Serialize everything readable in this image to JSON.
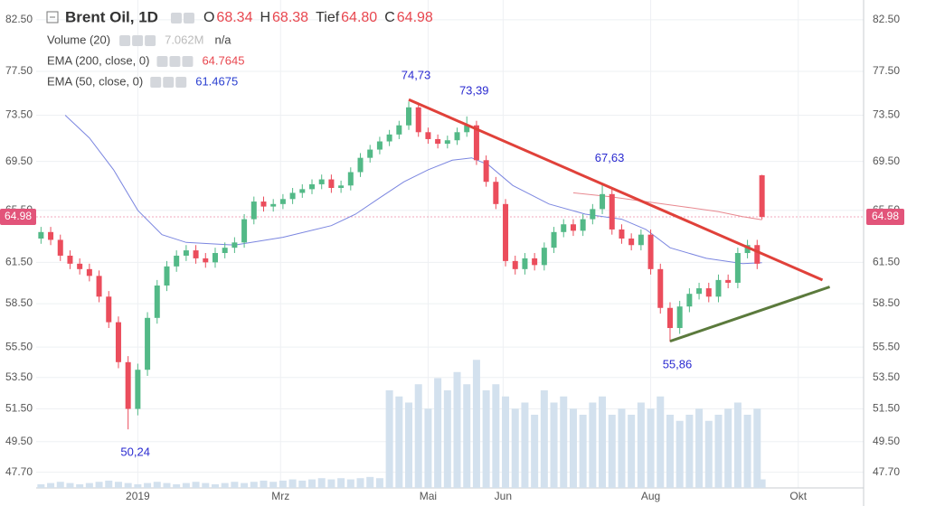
{
  "chart_data": {
    "type": "candlestick",
    "title": "Brent Oil, 1D",
    "log_scale": true,
    "grid": true,
    "up_color": "#53b987",
    "down_color": "#eb4d5c",
    "x": [
      -40,
      -36,
      -32,
      -28,
      -24,
      -20,
      -16,
      -12,
      -8,
      -4,
      0,
      4,
      8,
      12,
      16,
      20,
      24,
      28,
      32,
      36,
      40,
      44,
      48,
      52,
      56,
      60,
      64,
      68,
      72,
      76,
      80,
      84,
      88,
      92,
      96,
      100,
      104,
      108,
      112,
      116,
      120,
      124,
      128,
      132,
      136,
      140,
      144,
      148,
      152,
      156,
      160,
      164,
      168,
      172,
      176,
      180,
      184,
      188,
      192,
      196,
      200,
      204,
      208,
      212,
      216,
      220,
      224,
      228,
      232,
      236,
      240,
      244,
      248,
      252,
      256,
      258
    ],
    "open": [
      63.3,
      63.8,
      63.2,
      62.0,
      61.4,
      61.0,
      60.5,
      59.0,
      57.2,
      54.5,
      51.5,
      54.0,
      57.5,
      59.8,
      61.2,
      62.0,
      62.4,
      61.8,
      61.5,
      62.2,
      62.6,
      63.0,
      64.8,
      66.2,
      65.8,
      66.0,
      66.4,
      66.9,
      67.2,
      67.6,
      68.0,
      67.3,
      67.5,
      68.6,
      69.8,
      70.5,
      71.2,
      71.8,
      72.6,
      74.2,
      72.0,
      71.4,
      71.0,
      71.3,
      72.0,
      72.6,
      69.6,
      67.8,
      66.0,
      61.6,
      61.0,
      61.8,
      61.3,
      62.6,
      63.8,
      64.4,
      63.9,
      64.8,
      65.6,
      66.8,
      64.0,
      63.3,
      62.8,
      63.6,
      61.0,
      58.2,
      56.8,
      58.3,
      59.2,
      59.6,
      59.0,
      60.2,
      60.0,
      62.2,
      62.8,
      68.34
    ],
    "high": [
      64.2,
      64.2,
      63.6,
      62.4,
      61.8,
      61.4,
      60.9,
      59.4,
      57.6,
      54.9,
      54.4,
      57.9,
      60.2,
      61.6,
      62.4,
      62.8,
      62.8,
      62.2,
      62.6,
      63.0,
      63.4,
      65.2,
      66.6,
      66.6,
      66.4,
      66.8,
      67.3,
      67.6,
      68.0,
      68.4,
      68.4,
      67.9,
      69.0,
      70.2,
      70.9,
      71.6,
      72.2,
      73.0,
      74.73,
      74.6,
      72.4,
      71.8,
      71.7,
      72.4,
      73.39,
      73.0,
      70.0,
      68.2,
      66.4,
      62.0,
      62.2,
      62.2,
      63.0,
      64.2,
      64.8,
      64.8,
      65.2,
      66.0,
      67.63,
      67.2,
      64.4,
      63.7,
      64.0,
      64.0,
      61.4,
      58.6,
      58.7,
      59.6,
      60.0,
      60.0,
      60.6,
      60.6,
      62.6,
      63.2,
      63.2,
      68.38
    ],
    "low": [
      62.9,
      62.8,
      61.6,
      61.0,
      60.6,
      60.1,
      58.6,
      56.8,
      54.1,
      50.24,
      51.1,
      53.6,
      57.1,
      59.4,
      60.8,
      61.6,
      61.4,
      61.1,
      61.1,
      61.8,
      62.2,
      62.6,
      64.4,
      65.4,
      65.4,
      65.6,
      66.0,
      66.5,
      66.8,
      67.2,
      66.9,
      66.9,
      67.1,
      68.2,
      69.4,
      70.1,
      70.8,
      71.4,
      72.2,
      71.6,
      71.0,
      70.6,
      70.6,
      70.9,
      71.6,
      69.2,
      67.4,
      65.6,
      61.2,
      60.6,
      60.6,
      60.9,
      60.9,
      62.2,
      63.4,
      63.5,
      63.5,
      64.4,
      65.2,
      63.6,
      62.9,
      62.4,
      62.4,
      60.6,
      57.8,
      55.86,
      56.4,
      57.9,
      58.8,
      58.6,
      58.6,
      59.6,
      59.6,
      61.8,
      61.0,
      64.8
    ],
    "close": [
      63.8,
      63.2,
      62.0,
      61.4,
      61.0,
      60.5,
      59.0,
      57.2,
      54.5,
      51.5,
      54.0,
      57.5,
      59.8,
      61.2,
      62.0,
      62.4,
      61.8,
      61.5,
      62.2,
      62.6,
      63.0,
      64.8,
      66.2,
      65.8,
      66.0,
      66.4,
      66.9,
      67.2,
      67.6,
      68.0,
      67.3,
      67.5,
      68.6,
      69.8,
      70.5,
      71.2,
      71.8,
      72.6,
      74.2,
      72.0,
      71.4,
      71.0,
      71.3,
      72.0,
      72.6,
      69.6,
      67.8,
      66.0,
      61.6,
      61.0,
      61.8,
      61.3,
      62.6,
      63.8,
      64.4,
      63.9,
      64.8,
      65.6,
      66.8,
      64.0,
      63.3,
      62.8,
      63.6,
      61.0,
      58.2,
      56.8,
      58.3,
      59.2,
      59.6,
      59.0,
      60.2,
      60.0,
      62.2,
      62.8,
      61.4,
      64.98
    ],
    "volume": [
      0.3,
      0.4,
      0.5,
      0.4,
      0.3,
      0.4,
      0.5,
      0.6,
      0.5,
      0.4,
      0.3,
      0.4,
      0.5,
      0.4,
      0.3,
      0.4,
      0.5,
      0.4,
      0.3,
      0.4,
      0.5,
      0.4,
      0.5,
      0.6,
      0.5,
      0.6,
      0.7,
      0.6,
      0.7,
      0.8,
      0.7,
      0.8,
      0.7,
      0.8,
      0.9,
      0.8,
      8.0,
      7.5,
      7.0,
      8.5,
      6.5,
      9.0,
      8.0,
      9.5,
      8.5,
      10.5,
      8.0,
      8.5,
      7.5,
      6.5,
      7.0,
      6.0,
      8.0,
      7.0,
      7.5,
      6.5,
      6.0,
      7.0,
      7.5,
      6.0,
      6.5,
      6.0,
      7.0,
      6.5,
      7.5,
      6.0,
      5.5,
      6.0,
      6.5,
      5.5,
      6.0,
      6.5,
      7.0,
      6.0,
      6.5,
      0.7
    ],
    "volume_ylim": [
      0,
      40
    ],
    "volume_color": "#d3e1ee",
    "ylim": [
      46.8,
      84.5
    ],
    "yticks": [
      {
        "value": 82.5,
        "label": "82.50"
      },
      {
        "value": 77.5,
        "label": "77.50"
      },
      {
        "value": 73.5,
        "label": "73.50"
      },
      {
        "value": 69.5,
        "label": "69.50"
      },
      {
        "value": 65.5,
        "label": "65.50"
      },
      {
        "value": 61.5,
        "label": "61.50"
      },
      {
        "value": 58.5,
        "label": "58.50"
      },
      {
        "value": 55.5,
        "label": "55.50"
      },
      {
        "value": 53.5,
        "label": "53.50"
      },
      {
        "value": 51.5,
        "label": "51.50"
      },
      {
        "value": 49.5,
        "label": "49.50"
      },
      {
        "value": 47.7,
        "label": "47.70"
      }
    ],
    "xlim": [
      -42,
      300
    ],
    "xticks": [
      {
        "value": 0,
        "label": "2019"
      },
      {
        "value": 59,
        "label": "Mrz"
      },
      {
        "value": 120,
        "label": "Mai"
      },
      {
        "value": 151,
        "label": "Jun"
      },
      {
        "value": 212,
        "label": "Aug"
      },
      {
        "value": 273,
        "label": "Okt"
      }
    ],
    "lines": [
      {
        "name": "EMA (200, close, 0)",
        "color": "#e8888f",
        "value_label": "64.7645",
        "label_color": "#e8474f",
        "x": [
          180,
          195,
          210,
          225,
          240,
          250,
          258
        ],
        "values": [
          66.9,
          66.6,
          66.2,
          65.8,
          65.4,
          65.0,
          64.76
        ]
      },
      {
        "name": "EMA (50, close, 0)",
        "color": "#7b86e0",
        "value_label": "61.4675",
        "label_color": "#2a3fd0",
        "x": [
          -30,
          -20,
          -10,
          0,
          10,
          20,
          40,
          60,
          80,
          90,
          100,
          110,
          120,
          130,
          138,
          145,
          155,
          170,
          185,
          200,
          210,
          220,
          235,
          250,
          258
        ],
        "values": [
          73.5,
          71.5,
          68.8,
          65.5,
          63.6,
          63.0,
          62.8,
          63.4,
          64.3,
          65.2,
          66.5,
          67.8,
          68.8,
          69.6,
          69.8,
          69.2,
          67.5,
          66.0,
          65.2,
          64.8,
          64.0,
          62.6,
          61.8,
          61.4,
          61.47
        ]
      }
    ],
    "trendlines": [
      {
        "color": "#e0413a",
        "x": [
          112,
          283
        ],
        "y": [
          74.9,
          60.2
        ]
      },
      {
        "color": "#5b7a3c",
        "x": [
          220,
          286
        ],
        "y": [
          55.9,
          59.7
        ]
      }
    ],
    "annotations": [
      {
        "text": "74,73",
        "x": 112,
        "y": 74.73,
        "position": "above"
      },
      {
        "text": "73,39",
        "x": 136,
        "y": 73.39,
        "position": "above"
      },
      {
        "text": "67,63",
        "x": 192,
        "y": 67.63,
        "position": "above"
      },
      {
        "text": "55,86",
        "x": 220,
        "y": 55.86,
        "position": "below"
      },
      {
        "text": "50,24",
        "x": -4,
        "y": 50.24,
        "position": "below"
      }
    ],
    "annotation_color": "#2a2ad0",
    "last_price": {
      "value": 64.98,
      "label": "64.98",
      "color": "#e2547a"
    },
    "legend": {
      "ohlc": [
        {
          "key": "O",
          "value": "68.34"
        },
        {
          "key": "H",
          "value": "68.38"
        },
        {
          "key": "Tief",
          "value": "64.80"
        },
        {
          "key": "C",
          "value": "64.98"
        }
      ],
      "volume": {
        "name": "Volume (20)",
        "value": "7.062M",
        "extra": "n/a"
      }
    }
  }
}
